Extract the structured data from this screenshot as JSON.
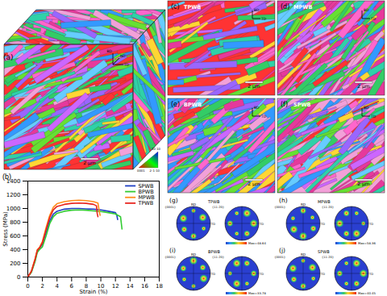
{
  "chart_data": {
    "type": "line",
    "title": "(b)",
    "xlabel": "Strain (%)",
    "ylabel": "Stress (MPa)",
    "xlim": [
      0,
      18
    ],
    "xticks": [
      0,
      2,
      4,
      6,
      8,
      10,
      12,
      14,
      16,
      18
    ],
    "ylim": [
      0,
      1400
    ],
    "yticks": [
      0,
      200,
      400,
      600,
      800,
      1000,
      1200,
      1400
    ],
    "legend": "top-right",
    "grid": false,
    "series": [
      {
        "name": "SPWB",
        "color": "#1f3fc4",
        "x": [
          0,
          0.5,
          1,
          1.3,
          1.6,
          2,
          2.5,
          3,
          3.5,
          4,
          5,
          6,
          7,
          8,
          9,
          10,
          11,
          12,
          12.2,
          12.3
        ],
        "values": [
          0,
          80,
          250,
          380,
          420,
          480,
          650,
          820,
          920,
          960,
          990,
          1000,
          1000,
          995,
          990,
          980,
          960,
          940,
          900,
          840
        ]
      },
      {
        "name": "BPWB",
        "color": "#33cc33",
        "x": [
          0,
          0.5,
          1,
          1.3,
          1.6,
          2,
          2.5,
          3,
          3.5,
          4,
          5,
          6,
          7,
          8,
          9,
          10,
          11,
          12,
          12.7,
          12.9
        ],
        "values": [
          0,
          70,
          230,
          360,
          400,
          440,
          600,
          780,
          880,
          930,
          960,
          975,
          980,
          975,
          965,
          955,
          940,
          920,
          880,
          700
        ]
      },
      {
        "name": "MPWB",
        "color": "#ff8c1a",
        "x": [
          0,
          0.5,
          1,
          1.3,
          1.6,
          2,
          2.5,
          3,
          3.5,
          4,
          5,
          6,
          7,
          8,
          9,
          9.6,
          9.8,
          9.9
        ],
        "values": [
          0,
          90,
          270,
          400,
          430,
          520,
          720,
          900,
          1020,
          1070,
          1100,
          1115,
          1120,
          1115,
          1100,
          1080,
          950,
          900
        ]
      },
      {
        "name": "TPWB",
        "color": "#e8251f",
        "x": [
          0,
          0.5,
          1,
          1.3,
          1.6,
          2,
          2.5,
          3,
          3.5,
          4,
          5,
          6,
          7,
          8,
          9,
          9.4,
          9.5,
          9.6
        ],
        "values": [
          0,
          85,
          260,
          390,
          425,
          500,
          690,
          870,
          980,
          1030,
          1060,
          1075,
          1080,
          1075,
          1060,
          1040,
          930,
          880
        ]
      }
    ]
  },
  "panels": {
    "cube": {
      "label": "(a)",
      "scale_bar": "2 μm",
      "axes": [
        "BD",
        "TD",
        "ND"
      ],
      "ipf_legend": [
        "0001",
        "2-1-10",
        "10-10"
      ]
    },
    "ebsd_maps": [
      {
        "label": "(c)",
        "name": "TPWB",
        "scale_bar": "2 μm",
        "axes": [
          "BD",
          "TD"
        ]
      },
      {
        "label": "(d)",
        "name": "MPWB",
        "scale_bar": "2 μm",
        "axes": [
          "BD",
          "TD"
        ]
      },
      {
        "label": "(e)",
        "name": "BPWB",
        "scale_bar": "2 μm",
        "axes": [
          "BD",
          "TD"
        ]
      },
      {
        "label": "(f)",
        "name": "SPWB",
        "scale_bar": "2 μm",
        "axes": [
          "BD",
          "TD"
        ]
      }
    ],
    "pole_figures": [
      {
        "label": "(g)",
        "name": "TPWB",
        "planes": [
          "{0001}",
          "{11-20}"
        ],
        "directions": [
          "RD",
          "TD"
        ],
        "max_label": "Max=48.64"
      },
      {
        "label": "(h)",
        "name": "MPWB",
        "planes": [
          "{0001}",
          "{11-20}"
        ],
        "directions": [
          "RD",
          "TD"
        ],
        "max_label": "Max=58.36"
      },
      {
        "label": "(i)",
        "name": "BPWB",
        "planes": [
          "{0001}",
          "{11-20}"
        ],
        "directions": [
          "RD",
          "TD"
        ],
        "max_label": "Max=33.78"
      },
      {
        "label": "(j)",
        "name": "SPWB",
        "planes": [
          "{0001}",
          "{11-20}"
        ],
        "directions": [
          "RD",
          "TD"
        ],
        "max_label": "Max=40.45"
      }
    ]
  }
}
